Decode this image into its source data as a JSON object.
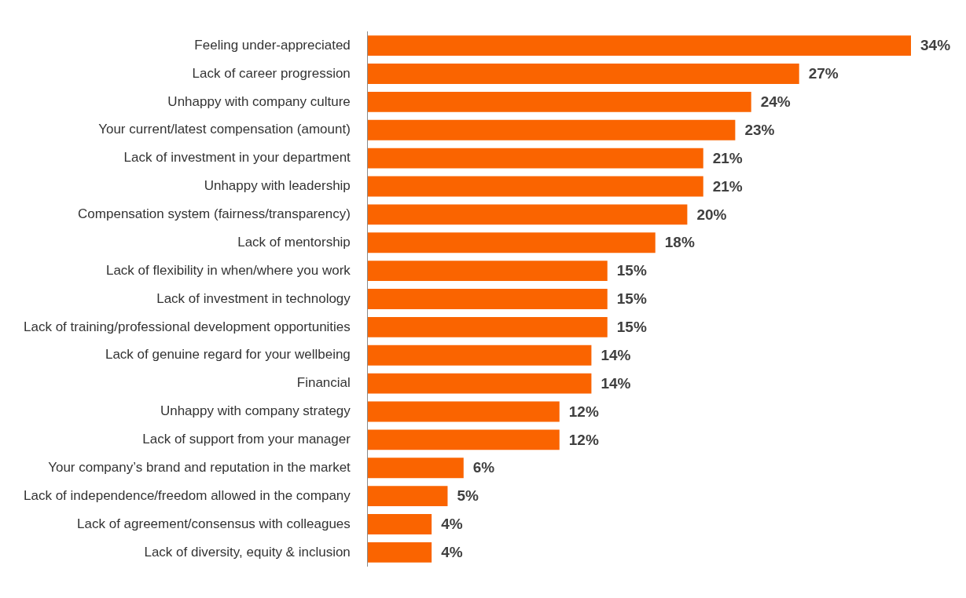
{
  "chart_data": {
    "type": "bar",
    "orientation": "horizontal",
    "color": "#fa6400",
    "categories": [
      "Feeling under-appreciated",
      "Lack of career progression",
      "Unhappy with company culture",
      "Your current/latest compensation (amount)",
      "Lack of investment in your department",
      "Unhappy with leadership",
      "Compensation system (fairness/transparency)",
      "Lack of mentorship",
      "Lack of flexibility in when/where you work",
      "Lack of investment in technology",
      "Lack of training/professional development opportunities",
      "Lack of genuine regard for your wellbeing",
      "Financial",
      "Unhappy with company strategy",
      "Lack of support from your manager",
      "Your company’s brand and reputation in the market",
      "Lack of independence/freedom allowed in the company",
      "Lack of agreement/consensus with colleagues",
      "Lack of diversity, equity & inclusion"
    ],
    "values": [
      34,
      27,
      24,
      23,
      21,
      21,
      20,
      18,
      15,
      15,
      15,
      14,
      14,
      12,
      12,
      6,
      5,
      4,
      4
    ],
    "value_labels": [
      "34%",
      "27%",
      "24%",
      "23%",
      "21%",
      "21%",
      "20%",
      "18%",
      "15%",
      "15%",
      "15%",
      "14%",
      "14%",
      "12%",
      "12%",
      "6%",
      "5%",
      "4%",
      "4%"
    ],
    "legend": false
  }
}
